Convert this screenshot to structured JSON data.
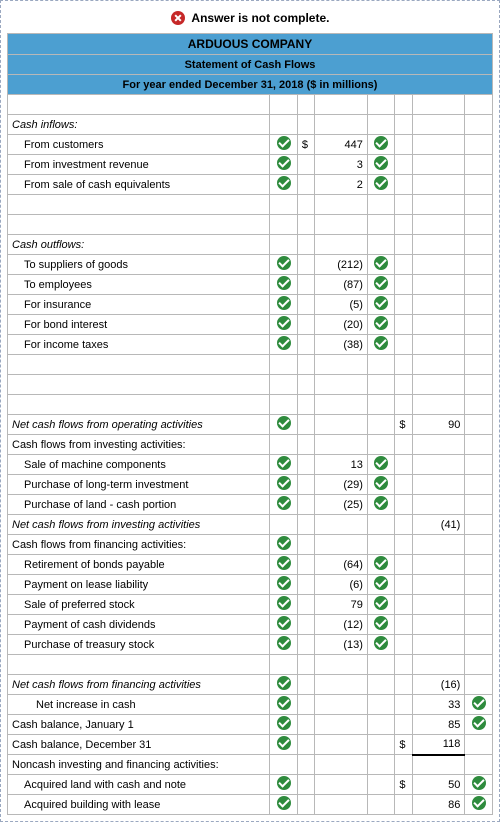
{
  "alert": "Answer is not complete.",
  "company": "ARDUOUS COMPANY",
  "statement": "Statement of Cash Flows",
  "period": "For year ended December 31, 2018 ($ in millions)",
  "sections": {
    "inflows_h": "Cash inflows:",
    "inflows": [
      {
        "label": "From customers",
        "cur": "$",
        "val": "447"
      },
      {
        "label": "From investment revenue",
        "cur": "",
        "val": "3"
      },
      {
        "label": "From sale of cash equivalents",
        "cur": "",
        "val": "2"
      }
    ],
    "outflows_h": "Cash outflows:",
    "outflows": [
      {
        "label": "To suppliers of goods",
        "val": "(212)"
      },
      {
        "label": "To employees",
        "val": "(87)"
      },
      {
        "label": "For insurance",
        "val": "(5)"
      },
      {
        "label": "For bond interest",
        "val": "(20)"
      },
      {
        "label": "For income taxes",
        "val": "(38)"
      }
    ],
    "op_total": {
      "label": "Net cash flows from operating activities",
      "cur": "$",
      "val": "90"
    },
    "inv_h": "Cash flows from investing activities:",
    "inv": [
      {
        "label": "Sale of machine components",
        "val": "13"
      },
      {
        "label": "Purchase of long-term investment",
        "val": "(29)"
      },
      {
        "label": "Purchase of land - cash portion",
        "val": "(25)"
      }
    ],
    "inv_total": {
      "label": "Net cash flows from investing activities",
      "val": "(41)"
    },
    "fin_h": "Cash flows from financing activities:",
    "fin": [
      {
        "label": "Retirement of bonds payable",
        "val": "(64)"
      },
      {
        "label": "Payment on lease liability",
        "val": "(6)"
      },
      {
        "label": "Sale of preferred stock",
        "val": "79"
      },
      {
        "label": "Payment of cash dividends",
        "val": "(12)"
      },
      {
        "label": "Purchase of treasury stock",
        "val": "(13)"
      }
    ],
    "fin_total": {
      "label": "Net cash flows from financing activities",
      "val": "(16)"
    },
    "netinc": {
      "label": "Net increase in cash",
      "val": "33"
    },
    "beg": {
      "label": "Cash balance, January 1",
      "val": "85"
    },
    "end": {
      "label": "Cash balance, December 31",
      "cur": "$",
      "val": "118"
    },
    "noncash_h": "Noncash investing and financing activities:",
    "noncash": [
      {
        "label": "Acquired land with cash and note",
        "cur": "$",
        "val": "50"
      },
      {
        "label": "Acquired building with lease",
        "cur": "",
        "val": "86"
      }
    ]
  }
}
